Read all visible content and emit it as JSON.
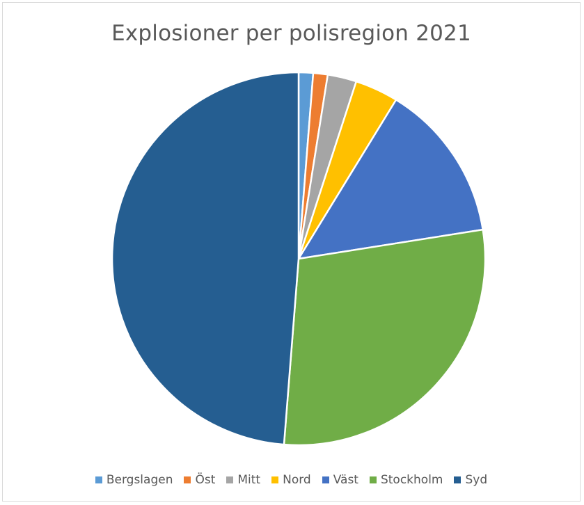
{
  "chart_data": {
    "type": "pie",
    "title": "Explosioner per polisregion 2021",
    "legend_position": "bottom",
    "start_angle_deg": 0,
    "direction": "clockwise",
    "slices": [
      {
        "name": "Bergslagen",
        "value": 1,
        "color": "#5B9BD5"
      },
      {
        "name": "Öst",
        "value": 1,
        "color": "#ED7D31"
      },
      {
        "name": "Mitt",
        "value": 2,
        "color": "#A5A5A5"
      },
      {
        "name": "Nord",
        "value": 3,
        "color": "#FFC000"
      },
      {
        "name": "Väst",
        "value": 11,
        "color": "#4472C4"
      },
      {
        "name": "Stockholm",
        "value": 23,
        "color": "#70AD47"
      },
      {
        "name": "Syd",
        "value": 39,
        "color": "#255E91"
      }
    ]
  }
}
